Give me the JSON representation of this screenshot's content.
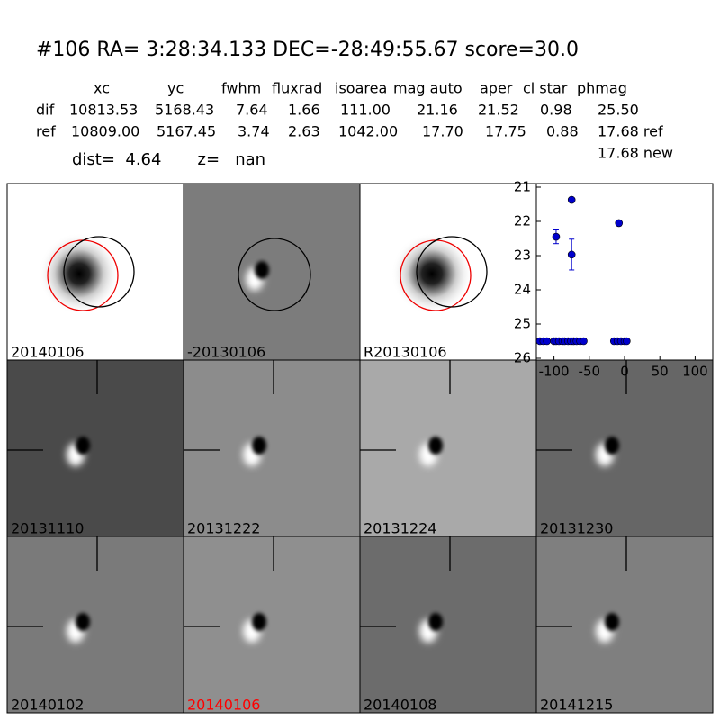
{
  "header": {
    "title": "#106   RA= 3:28:34.133 DEC=-28:49:55.67       score=30.0"
  },
  "table": {
    "columns": [
      "xc",
      "yc",
      "fwhm",
      "fluxrad",
      "isoarea",
      "mag auto",
      "aper",
      "cl star",
      "phmag"
    ],
    "rows": [
      [
        "dif",
        "10813.53",
        "5168.43",
        "7.64",
        "1.66",
        "111.00",
        "21.16",
        "21.52",
        "0.98",
        "25.50"
      ],
      [
        "ref",
        "10809.00",
        "5167.45",
        "3.74",
        "2.63",
        "1042.00",
        "17.70",
        "17.75",
        "0.88",
        "17.68 ref"
      ]
    ],
    "extra": "17.68 new",
    "summary": "dist=  4.64       z=   nan"
  },
  "panels": [
    {
      "label": "20140106"
    },
    {
      "label": "-20130106"
    },
    {
      "label": "R20130106"
    },
    {
      "label": "20131110"
    },
    {
      "label": "20131222"
    },
    {
      "label": "20131224"
    },
    {
      "label": "20131230"
    },
    {
      "label": "20140102"
    },
    {
      "label": "20140106",
      "color": "#ff0000"
    },
    {
      "label": "20140108"
    },
    {
      "label": "20141215"
    }
  ],
  "chart_data": {
    "type": "scatter",
    "x": [
      -120,
      -115,
      -110,
      -100,
      -97,
      -93,
      -88,
      -85,
      -80,
      -76,
      -72,
      -68,
      -63,
      -58,
      -15,
      -10,
      -5,
      0,
      3,
      -97,
      -75,
      -75,
      -8
    ],
    "series": [
      {
        "color": "#0000cc",
        "values": [
          25.5,
          25.5,
          25.5,
          25.5,
          25.5,
          25.5,
          25.5,
          25.5,
          25.5,
          25.5,
          25.5,
          25.5,
          25.5,
          25.5,
          25.5,
          25.5,
          25.5,
          25.5,
          25.5,
          22.45,
          22.97,
          21.37,
          22.05
        ],
        "errors": [
          null,
          null,
          null,
          null,
          null,
          null,
          null,
          null,
          null,
          null,
          null,
          null,
          null,
          null,
          null,
          null,
          null,
          null,
          null,
          0.2,
          0.45,
          null,
          0.08
        ]
      }
    ],
    "xlim": [
      -125,
      125
    ],
    "xticks": [
      -100,
      -50,
      0,
      50,
      100
    ],
    "ylim": [
      26,
      21
    ],
    "yticks": [
      21,
      22,
      23,
      24,
      25,
      26
    ]
  }
}
